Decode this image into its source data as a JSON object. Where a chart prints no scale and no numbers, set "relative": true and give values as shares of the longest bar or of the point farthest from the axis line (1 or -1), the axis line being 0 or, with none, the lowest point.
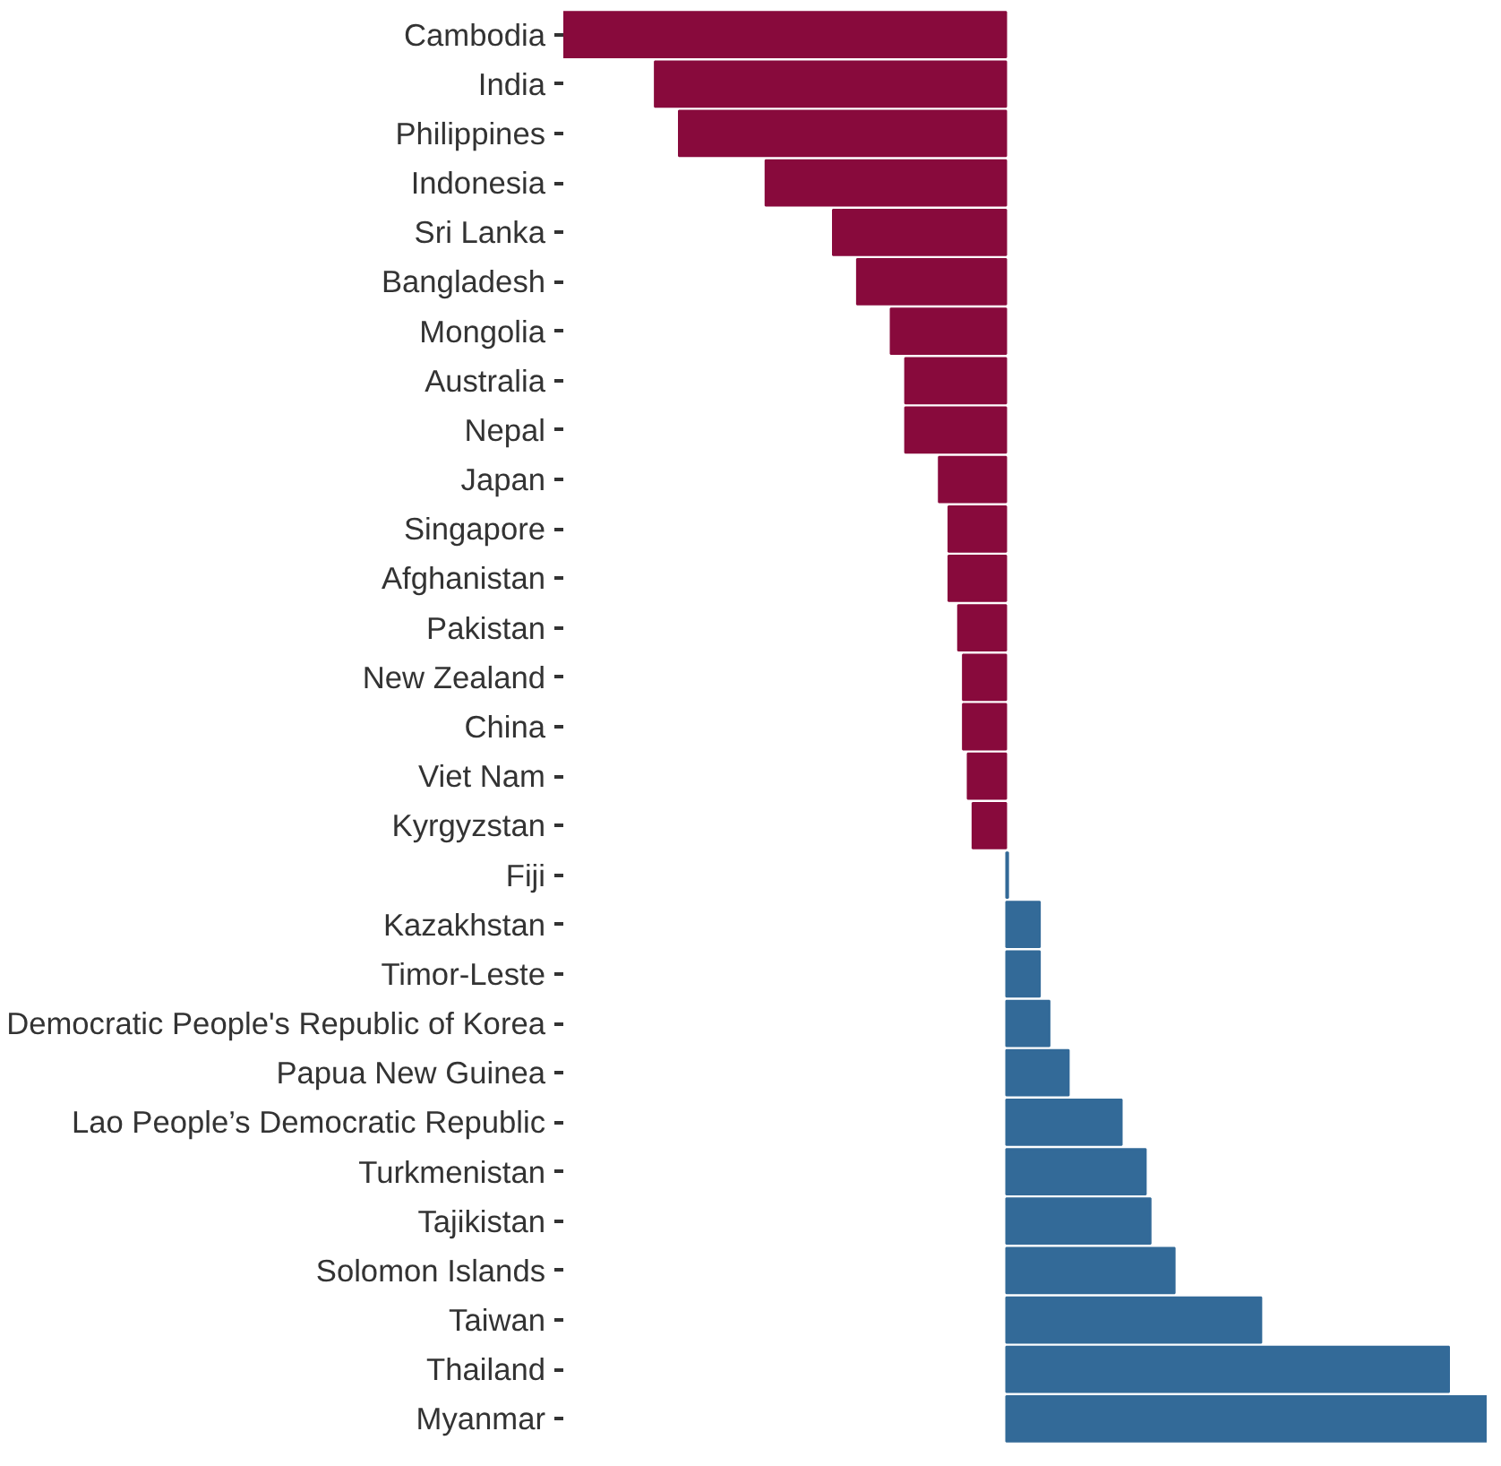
{
  "chart_data": {
    "type": "bar",
    "orientation": "horizontal",
    "relative": true,
    "grid": false,
    "categories": [
      "Cambodia",
      "India",
      "Philippines",
      "Indonesia",
      "Sri Lanka",
      "Bangladesh",
      "Mongolia",
      "Australia",
      "Nepal",
      "Japan",
      "Singapore",
      "Afghanistan",
      "Pakistan",
      "New Zealand",
      "China",
      "Viet Nam",
      "Kyrgyzstan",
      "Fiji",
      "Kazakhstan",
      "Timor-Leste",
      "Democratic People's Republic of Korea",
      "Papua New Guinea",
      "Lao People’s Democratic Republic",
      "Turkmenistan",
      "Tajikistan",
      "Solomon Islands",
      "Taiwan",
      "Thailand",
      "Myanmar"
    ],
    "values": [
      -0.92,
      -0.73,
      -0.68,
      -0.5,
      -0.36,
      -0.31,
      -0.24,
      -0.21,
      -0.21,
      -0.14,
      -0.12,
      -0.12,
      -0.1,
      -0.09,
      -0.09,
      -0.08,
      -0.07,
      0.004,
      0.07,
      0.07,
      0.09,
      0.13,
      0.24,
      0.29,
      0.3,
      0.35,
      0.53,
      0.92,
      1
    ],
    "colors": [
      "#880a3c",
      "#880a3c",
      "#880a3c",
      "#880a3c",
      "#880a3c",
      "#880a3c",
      "#880a3c",
      "#880a3c",
      "#880a3c",
      "#880a3c",
      "#880a3c",
      "#880a3c",
      "#880a3c",
      "#880a3c",
      "#880a3c",
      "#880a3c",
      "#880a3c",
      "#336a98",
      "#336a98",
      "#336a98",
      "#336a98",
      "#336a98",
      "#336a98",
      "#336a98",
      "#336a98",
      "#336a98",
      "#336a98",
      "#336a98",
      "#336a98"
    ]
  }
}
